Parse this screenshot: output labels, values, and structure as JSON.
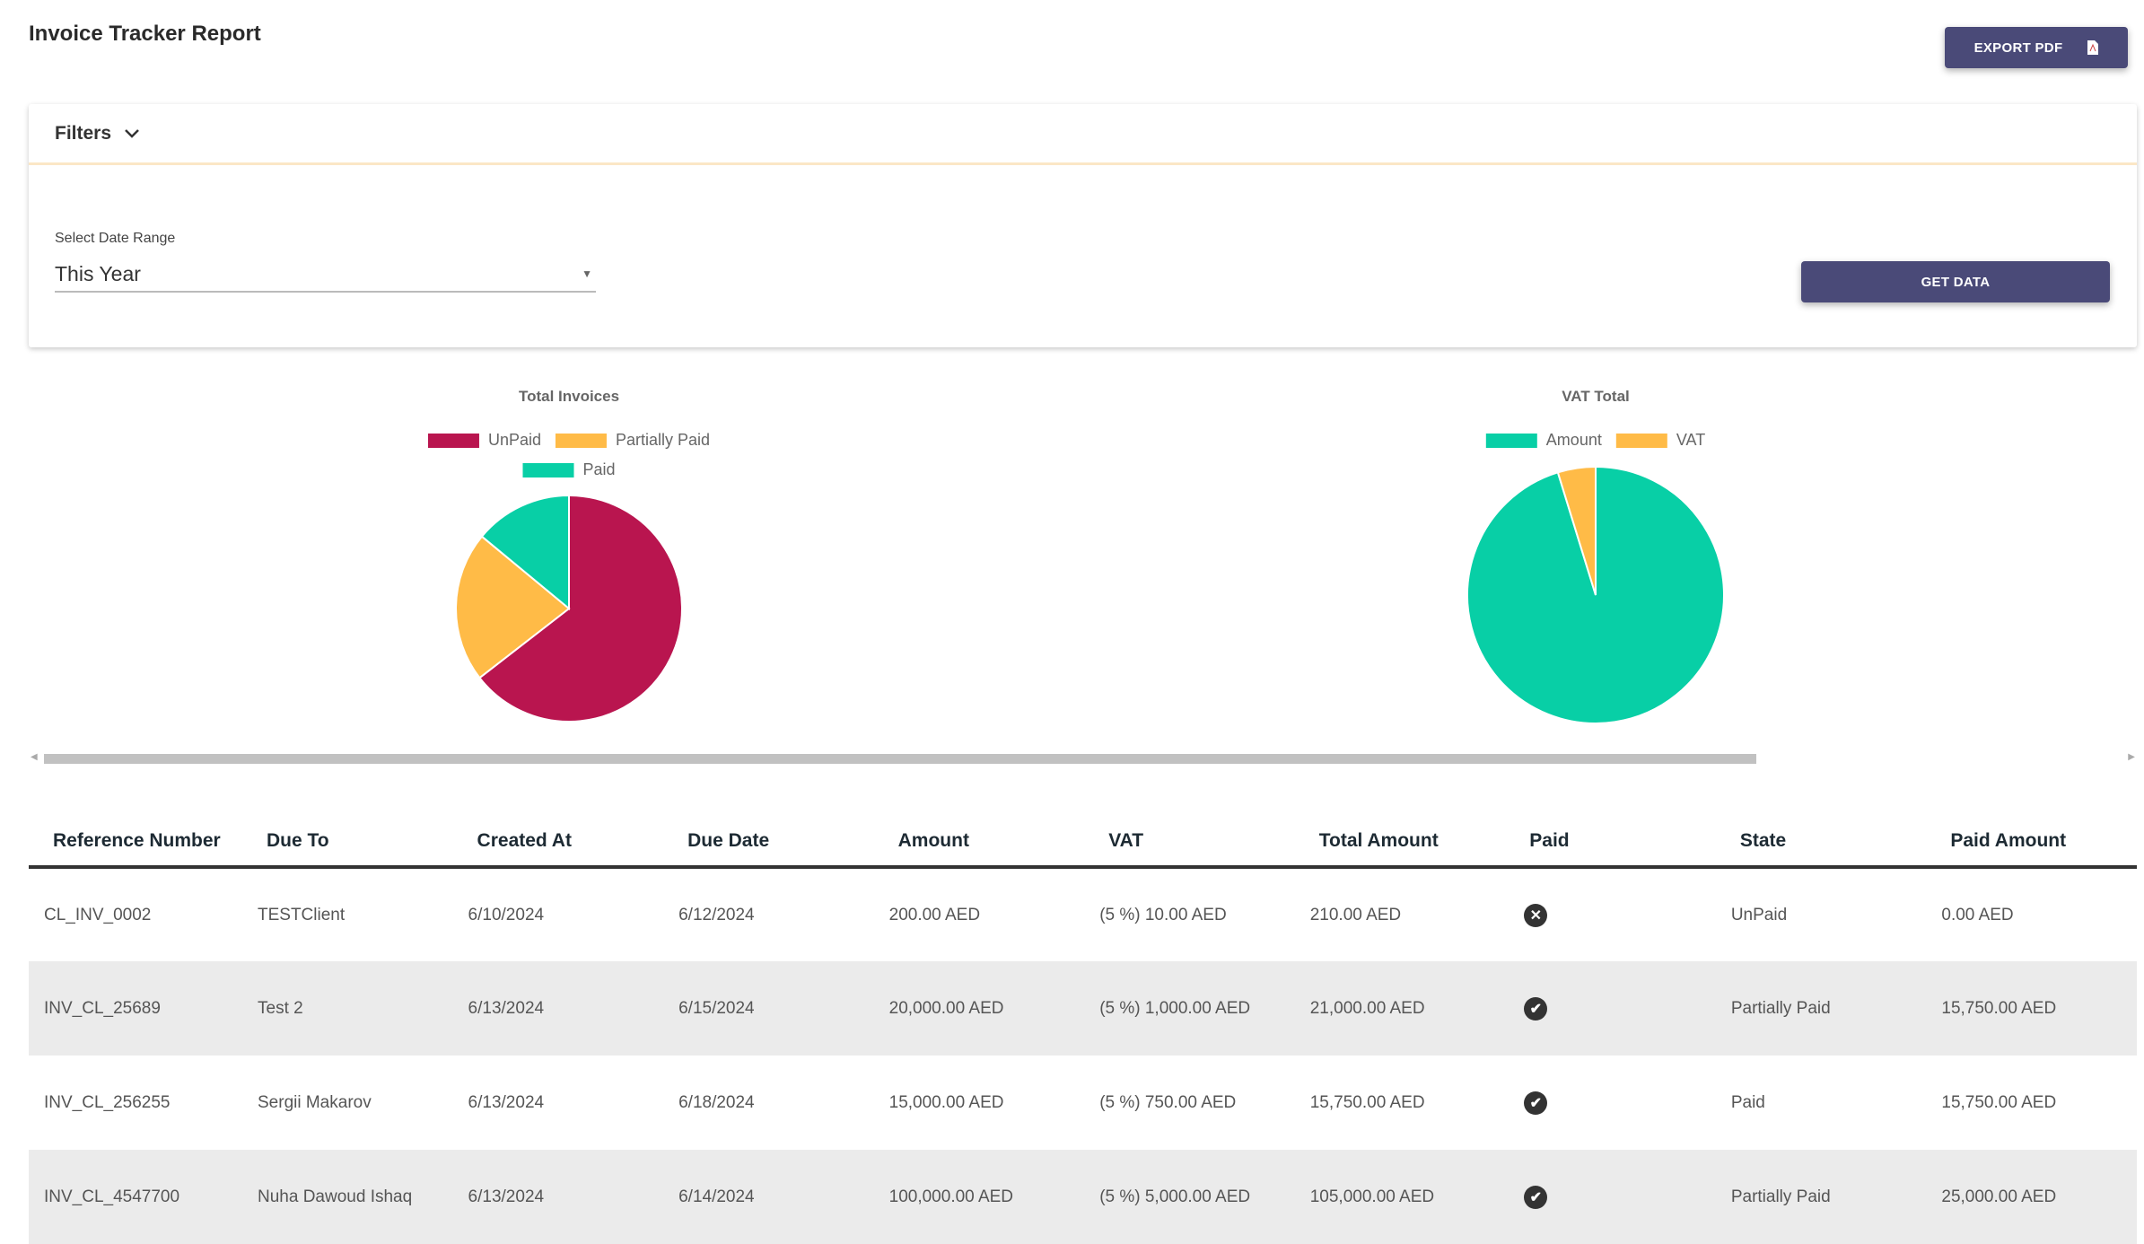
{
  "header": {
    "title": "Invoice Tracker Report",
    "export_label": "EXPORT PDF",
    "export_icon": "pdf-file-icon"
  },
  "filters": {
    "title": "Filters",
    "date_range_label": "Select Date Range",
    "date_range_value": "This Year",
    "get_data_label": "GET DATA"
  },
  "chart_data": [
    {
      "type": "pie",
      "title": "Total Invoices",
      "categories": [
        "UnPaid",
        "Partially Paid",
        "Paid"
      ],
      "values": [
        64.5,
        21.5,
        14
      ],
      "unit": "percent (estimated)",
      "colors": [
        "#b9154f",
        "#ffbb47",
        "#08cfa6"
      ],
      "legend": "top"
    },
    {
      "type": "pie",
      "title": "VAT Total",
      "categories": [
        "Amount",
        "VAT"
      ],
      "values": [
        95.24,
        4.76
      ],
      "unit": "percent (estimated)",
      "colors": [
        "#08cfa6",
        "#ffbb47"
      ],
      "legend": "top"
    }
  ],
  "table": {
    "headers": [
      "Reference Number",
      "Due To",
      "Created At",
      "Due Date",
      "Amount",
      "VAT",
      "Total Amount",
      "Paid",
      "State",
      "Paid Amount"
    ],
    "rows": [
      {
        "ref": "CL_INV_0002",
        "due_to": "TESTClient",
        "created": "6/10/2024",
        "due": "6/12/2024",
        "amount": "200.00 AED",
        "vat": "(5 %) 10.00 AED",
        "total": "210.00 AED",
        "paid": false,
        "state": "UnPaid",
        "paid_amount": "0.00 AED"
      },
      {
        "ref": "INV_CL_25689",
        "due_to": "Test 2",
        "created": "6/13/2024",
        "due": "6/15/2024",
        "amount": "20,000.00 AED",
        "vat": "(5 %) 1,000.00 AED",
        "total": "21,000.00 AED",
        "paid": true,
        "state": "Partially Paid",
        "paid_amount": "15,750.00 AED"
      },
      {
        "ref": "INV_CL_256255",
        "due_to": "Sergii Makarov",
        "created": "6/13/2024",
        "due": "6/18/2024",
        "amount": "15,000.00 AED",
        "vat": "(5 %) 750.00 AED",
        "total": "15,750.00 AED",
        "paid": true,
        "state": "Paid",
        "paid_amount": "15,750.00 AED"
      },
      {
        "ref": "INV_CL_4547700",
        "due_to": "Nuha Dawoud Ishaq",
        "created": "6/13/2024",
        "due": "6/14/2024",
        "amount": "100,000.00 AED",
        "vat": "(5 %) 5,000.00 AED",
        "total": "105,000.00 AED",
        "paid": true,
        "state": "Partially Paid",
        "paid_amount": "25,000.00 AED"
      }
    ]
  }
}
